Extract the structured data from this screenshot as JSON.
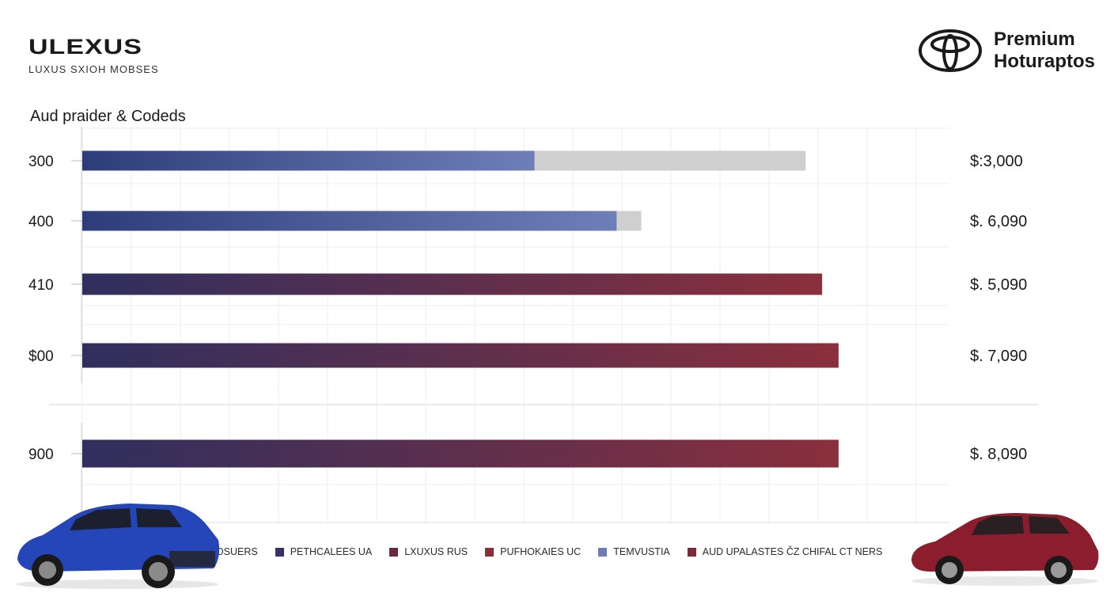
{
  "header": {
    "logo_text": "ULEXUS",
    "logo_sub": "LUXUS SXIOH MOBSES",
    "right_name_line1": "Premium",
    "right_name_line2": "Hoturaptos",
    "right_mark_icon": "toyota-emblem-icon"
  },
  "chart_data": {
    "type": "bar",
    "title": "Aud praider & Codeds",
    "orientation": "horizontal",
    "categories": [
      "300",
      "400",
      "410",
      "$00",
      "900"
    ],
    "values": [
      55,
      65,
      90,
      92,
      92
    ],
    "background_values": [
      88,
      68,
      null,
      null,
      null
    ],
    "value_labels": [
      "$:3,000",
      "$. 6,090",
      "$. 5,090",
      "$. 7,090",
      "$. 8,090"
    ],
    "xlim": [
      0,
      100
    ],
    "grid": true,
    "colors": {
      "blue_start": "#2c3d7a",
      "blue_end": "#6e7fb8",
      "mixed_start": "#2f2f5e",
      "mixed_end": "#8b2f3c",
      "track": "#cfcfcf"
    },
    "bar_styles": [
      "blue",
      "blue",
      "mixed",
      "mixed",
      "mixed"
    ]
  },
  "legend": [
    {
      "label": "ЮSUERS",
      "color": ""
    },
    {
      "label": "PETHCALEES UA",
      "color": "#33336a"
    },
    {
      "label": "LXUXUS RUS",
      "color": "#6a2a3c"
    },
    {
      "label": "PUFHOKAIES UC",
      "color": "#8b2f3c"
    },
    {
      "label": "TEMVUSTIA",
      "color": "#6d7db3"
    },
    {
      "label": "AUD UPALASTES ČZ CHIFAL CT NERS",
      "color": "#7a2a3a"
    }
  ],
  "cars": {
    "left_icon": "blue-suv-icon",
    "right_icon": "red-suv-icon"
  }
}
